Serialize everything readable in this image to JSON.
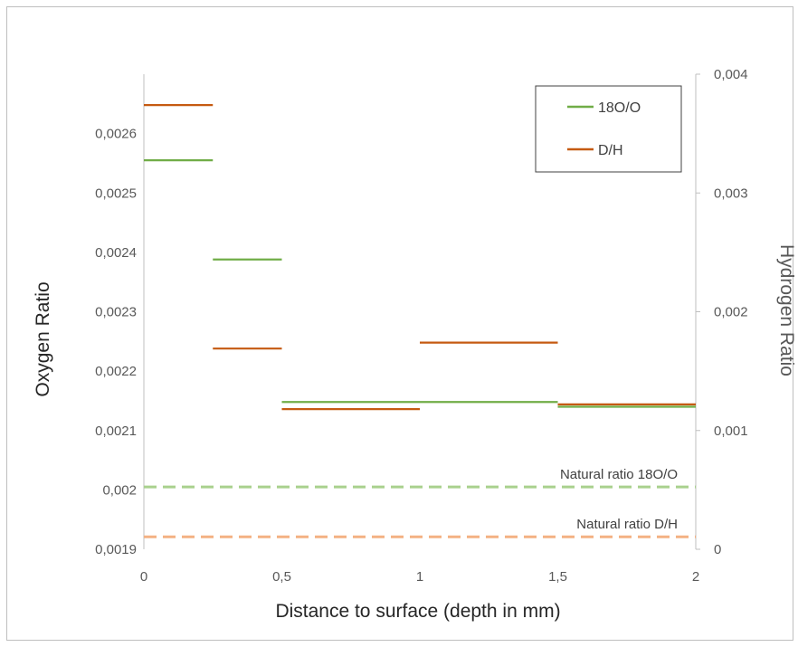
{
  "chart_data": {
    "type": "step-line",
    "title": "",
    "xlabel": "Distance to surface  (depth in mm)",
    "ylabel_left": "Oxygen Ratio",
    "ylabel_right": "Hydrogen Ratio",
    "x_range": [
      0,
      2
    ],
    "x_ticks": [
      "0",
      "0,5",
      "1",
      "1,5",
      "2"
    ],
    "y_left_range": [
      0.0019,
      0.0027
    ],
    "y_left_ticks": [
      "0,0019",
      "0,002",
      "0,0021",
      "0,0022",
      "0,0023",
      "0,0024",
      "0,0025",
      "0,0026"
    ],
    "y_right_range": [
      0,
      0.004
    ],
    "y_right_ticks": [
      "0",
      "0,001",
      "0,002",
      "0,003",
      "0,004"
    ],
    "grid": false,
    "legend_position": "top-right",
    "series": [
      {
        "name": "18O/O",
        "axis": "left",
        "color": "#70ad47",
        "segments": [
          {
            "x0": 0,
            "x1": 0.25,
            "y": 0.002555
          },
          {
            "x0": 0.25,
            "x1": 0.5,
            "y": 0.002388
          },
          {
            "x0": 0.5,
            "x1": 1.5,
            "y": 0.002148
          },
          {
            "x0": 1.5,
            "x1": 2.0,
            "y": 0.00214
          }
        ]
      },
      {
        "name": "D/H",
        "axis": "right",
        "color": "#c55a11",
        "segments": [
          {
            "x0": 0,
            "x1": 0.25,
            "y": 0.00374
          },
          {
            "x0": 0.25,
            "x1": 0.5,
            "y": 0.00169
          },
          {
            "x0": 0.5,
            "x1": 1.0,
            "y": 0.00118
          },
          {
            "x0": 1.0,
            "x1": 1.5,
            "y": 0.00174
          },
          {
            "x0": 1.5,
            "x1": 2.0,
            "y": 0.00122
          }
        ]
      }
    ],
    "reference_lines": [
      {
        "label": "Natural ratio 18O/O",
        "axis": "left",
        "y": 0.002005,
        "color": "#a9d18e"
      },
      {
        "label": "Natural ratio D/H",
        "axis": "right",
        "y": 0.000105,
        "color": "#f4b183"
      }
    ]
  }
}
